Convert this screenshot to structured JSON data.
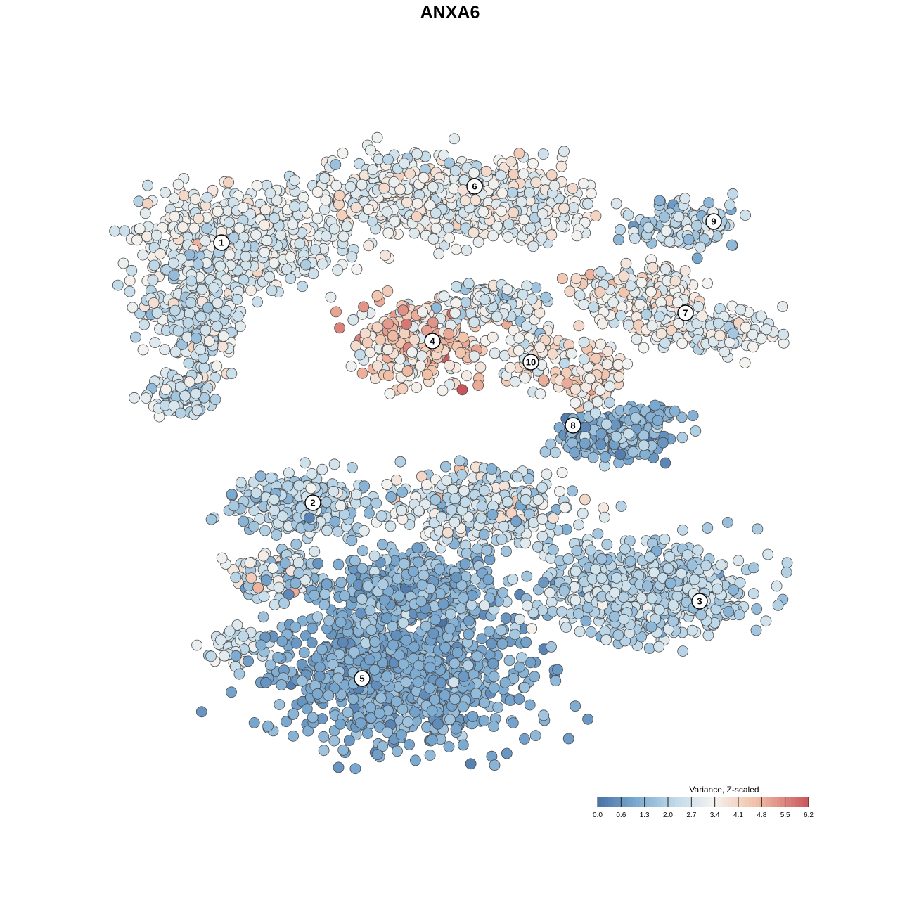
{
  "chart_data": {
    "type": "scatter",
    "title": "ANXA6",
    "xlabel": "",
    "ylabel": "",
    "grid": false,
    "legend": {
      "title": "Variance, Z-scaled",
      "placement": "bottom-right",
      "min": 0.0,
      "max": 6.2,
      "ticks": [
        "0.0",
        "0.6",
        "1.3",
        "2.0",
        "2.7",
        "3.4",
        "4.1",
        "4.8",
        "5.5",
        "6.2"
      ]
    },
    "colors": {
      "low": "#4a72a6",
      "mid_low": "#7aa9d0",
      "mid": "#c4dcea",
      "neutral": "#f4f3f0",
      "mid_high": "#f2c1a8",
      "high": "#c9545a"
    },
    "clusters": [
      {
        "label": "1",
        "x": -29.5,
        "y": 24.5,
        "mean_value": 3.0
      },
      {
        "label": "2",
        "x": -16.5,
        "y": -12.5,
        "mean_value": 2.2
      },
      {
        "label": "3",
        "x": 38.5,
        "y": -26.5,
        "mean_value": 2.3
      },
      {
        "label": "4",
        "x": 0.5,
        "y": 10.5,
        "mean_value": 4.3
      },
      {
        "label": "5",
        "x": -9.5,
        "y": -37.5,
        "mean_value": 1.3
      },
      {
        "label": "6",
        "x": 6.5,
        "y": 32.5,
        "mean_value": 3.3
      },
      {
        "label": "7",
        "x": 36.5,
        "y": 14.5,
        "mean_value": 3.4
      },
      {
        "label": "8",
        "x": 20.5,
        "y": -1.5,
        "mean_value": 1.6
      },
      {
        "label": "9",
        "x": 40.5,
        "y": 27.5,
        "mean_value": 2.1
      },
      {
        "label": "10",
        "x": 14.5,
        "y": 7.5,
        "mean_value": 3.3
      }
    ]
  }
}
